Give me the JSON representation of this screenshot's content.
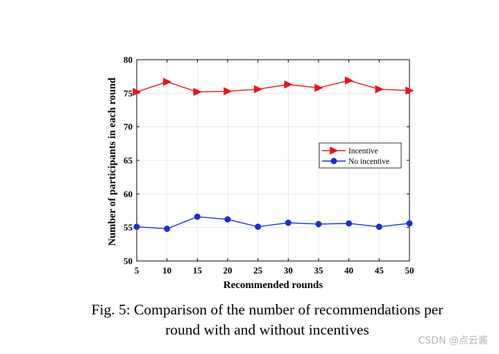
{
  "chart_data": {
    "type": "line",
    "title": "",
    "xlabel": "Recommended rounds",
    "ylabel": "Number of participants in each round",
    "x": [
      5,
      10,
      15,
      20,
      25,
      30,
      35,
      40,
      45,
      50
    ],
    "xlim": [
      5,
      50
    ],
    "ylim": [
      50,
      80
    ],
    "xticks": [
      "5",
      "10",
      "15",
      "20",
      "25",
      "30",
      "35",
      "40",
      "45",
      "50"
    ],
    "yticks": [
      "50",
      "55",
      "60",
      "65",
      "70",
      "75",
      "80"
    ],
    "grid": true,
    "legend_position": "center-right",
    "series": [
      {
        "name": "Incentive",
        "color": "#e8141c",
        "marker": "triangle-right",
        "values": [
          75.2,
          76.7,
          75.2,
          75.3,
          75.6,
          76.3,
          75.8,
          76.9,
          75.6,
          75.4
        ]
      },
      {
        "name": "No incentive",
        "color": "#1a2fd6",
        "marker": "circle",
        "values": [
          55.1,
          54.8,
          56.6,
          56.2,
          55.1,
          55.7,
          55.5,
          55.6,
          55.1,
          55.6
        ]
      }
    ]
  },
  "caption": {
    "line1": "Fig. 5: Comparison of the number of recommendations per",
    "line2": "round with and without incentives"
  },
  "watermark": "CSDN @点云酱"
}
